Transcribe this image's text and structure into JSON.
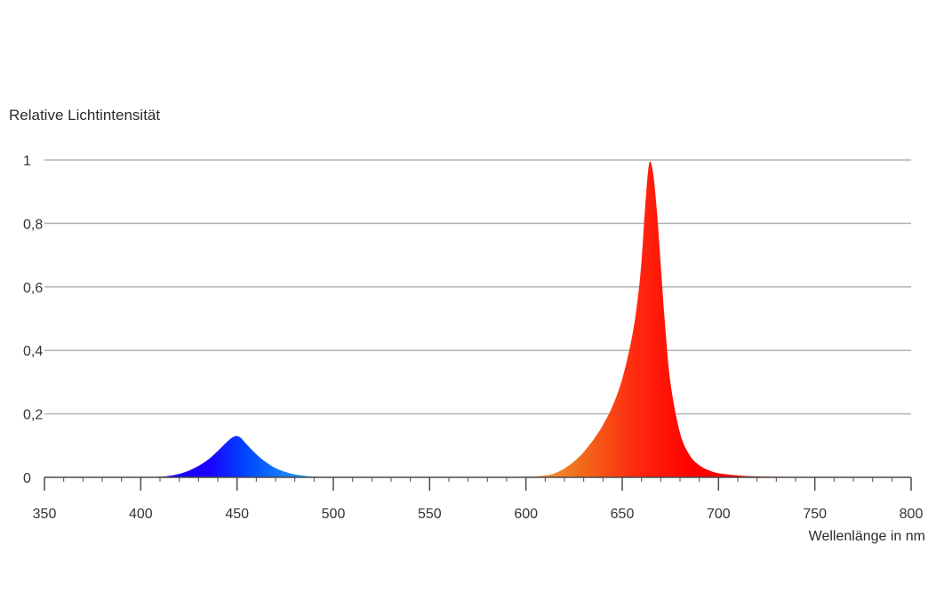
{
  "chart_data": {
    "type": "area",
    "ylabel": "Relative Lichtintensität",
    "xlabel": "Wellenlänge in nm",
    "xlim": [
      350,
      800
    ],
    "ylim": [
      0,
      1
    ],
    "x_ticks": [
      350,
      400,
      450,
      500,
      550,
      600,
      650,
      700,
      750,
      800
    ],
    "x_tick_labels": [
      "350",
      "400",
      "450",
      "500",
      "550",
      "600",
      "650",
      "700",
      "750",
      "800"
    ],
    "y_ticks": [
      0,
      0.2,
      0.4,
      0.6,
      0.8,
      1
    ],
    "y_tick_labels": [
      "0",
      "0,2",
      "0,4",
      "0,6",
      "0,8",
      "1"
    ],
    "grid": "horizontal",
    "series": [
      {
        "color_stops": [
          "#1a00ff",
          "#0047ff",
          "#29a8ef"
        ],
        "x": [
          400,
          410,
          415,
          420,
          425,
          430,
          435,
          440,
          445,
          448,
          450,
          452,
          455,
          460,
          465,
          470,
          475,
          480,
          485,
          490,
          500
        ],
        "y": [
          0,
          0.002,
          0.005,
          0.011,
          0.021,
          0.036,
          0.056,
          0.083,
          0.113,
          0.127,
          0.13,
          0.124,
          0.104,
          0.073,
          0.048,
          0.029,
          0.017,
          0.009,
          0.005,
          0.002,
          0
        ]
      },
      {
        "color_stops": [
          "#f5e26a",
          "#f06a1a",
          "#ff2a10",
          "#ff0000"
        ],
        "x": [
          560,
          580,
          600,
          610,
          615,
          620,
          625,
          630,
          635,
          640,
          645,
          650,
          655,
          658,
          660,
          662,
          664,
          666,
          668,
          670,
          672,
          675,
          680,
          685,
          690,
          695,
          700,
          710,
          720,
          740,
          760,
          790
        ],
        "y": [
          0,
          0.001,
          0.002,
          0.006,
          0.013,
          0.028,
          0.05,
          0.08,
          0.118,
          0.165,
          0.225,
          0.31,
          0.44,
          0.56,
          0.68,
          0.86,
          0.99,
          0.96,
          0.84,
          0.67,
          0.5,
          0.3,
          0.14,
          0.07,
          0.038,
          0.022,
          0.013,
          0.006,
          0.003,
          0.001,
          0.0004,
          0
        ]
      }
    ]
  }
}
